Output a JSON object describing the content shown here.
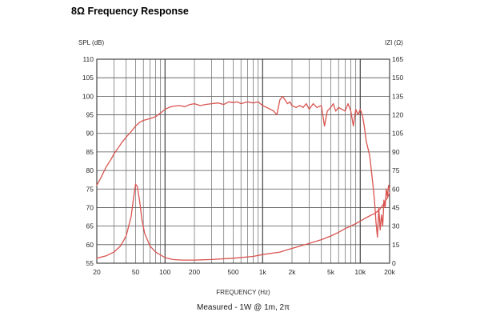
{
  "page": {
    "title": "8Ω Frequency Response"
  },
  "chart_data": {
    "type": "line",
    "title": "8Ω Frequency Response",
    "xlabel": "FREQUENCY (Hz)",
    "ylabel_left": "SPL (dB)",
    "ylabel_right": "IZI (Ω)",
    "caption": "Measured - 1W @ 1m, 2π",
    "x_scale": "log",
    "xlim": [
      20,
      20000
    ],
    "ylim_left": [
      55,
      110
    ],
    "ylim_right": [
      0,
      165
    ],
    "grid": true,
    "x_ticks": [
      {
        "value": 20,
        "label": "20"
      },
      {
        "value": 50,
        "label": "50"
      },
      {
        "value": 100,
        "label": "100"
      },
      {
        "value": 200,
        "label": "200"
      },
      {
        "value": 500,
        "label": "500"
      },
      {
        "value": 1000,
        "label": "1k"
      },
      {
        "value": 2000,
        "label": "2k"
      },
      {
        "value": 5000,
        "label": "5k"
      },
      {
        "value": 10000,
        "label": "10k"
      },
      {
        "value": 20000,
        "label": "20k"
      }
    ],
    "y_left_ticks": [
      110,
      105,
      100,
      95,
      90,
      85,
      80,
      75,
      70,
      65,
      60,
      55
    ],
    "y_right_ticks": [
      165,
      150,
      135,
      120,
      105,
      90,
      75,
      60,
      45,
      30,
      15,
      0
    ],
    "line_color": "#d9534f",
    "series": [
      {
        "axis": "left",
        "x": [
          20,
          22,
          25,
          28,
          30,
          33,
          36,
          40,
          45,
          50,
          55,
          60,
          70,
          80,
          90,
          100,
          110,
          120,
          140,
          160,
          180,
          200,
          230,
          260,
          300,
          350,
          400,
          450,
          500,
          550,
          600,
          700,
          800,
          900,
          1000,
          1100,
          1200,
          1300,
          1400,
          1500,
          1600,
          1700,
          1800,
          1900,
          2000,
          2200,
          2400,
          2600,
          2800,
          3000,
          3300,
          3600,
          4000,
          4300,
          4600,
          5000,
          5300,
          5600,
          6000,
          6500,
          7000,
          7500,
          8000,
          8500,
          9000,
          9500,
          10000,
          10500,
          11000,
          11500,
          12000,
          12500,
          13000,
          13500,
          14000,
          14500,
          15000,
          15500,
          16000,
          16500,
          17000,
          17500,
          18000,
          18500,
          19000,
          19500,
          20000
        ],
        "y": [
          76,
          78,
          81,
          83,
          84.5,
          86,
          87.5,
          89,
          90.5,
          92,
          93,
          93.5,
          94,
          94.5,
          95.5,
          96.5,
          97,
          97.3,
          97.5,
          97.2,
          97.8,
          98,
          97.5,
          97.8,
          98,
          98.2,
          97.8,
          98.5,
          98.3,
          98.5,
          98,
          98.5,
          98.2,
          98.5,
          97.5,
          97,
          96.5,
          96,
          95,
          99,
          100,
          99,
          98,
          98.5,
          97.5,
          97,
          97.5,
          97,
          98,
          96.5,
          98,
          97,
          97.5,
          92,
          96,
          97,
          98,
          96,
          97,
          96.5,
          96,
          98,
          96,
          92,
          96.5,
          95,
          96.5,
          95,
          92,
          88,
          86,
          84,
          80,
          76,
          72,
          66,
          62,
          70,
          64,
          68,
          65,
          72,
          70,
          75,
          73,
          76,
          75
        ]
      },
      {
        "axis": "right",
        "x": [
          20,
          25,
          30,
          35,
          40,
          45,
          48,
          50,
          52,
          55,
          58,
          62,
          70,
          80,
          100,
          120,
          150,
          200,
          300,
          500,
          800,
          1000,
          1500,
          2000,
          3000,
          4000,
          5000,
          6000,
          7000,
          8000,
          9000,
          10000,
          11000,
          12000,
          13000,
          14000,
          15000,
          16000,
          17000,
          18000,
          19000,
          20000
        ],
        "y": [
          4,
          6,
          9,
          14,
          22,
          38,
          55,
          64,
          62,
          50,
          35,
          24,
          14,
          9,
          4.5,
          3,
          2.5,
          2.5,
          3,
          4,
          5.5,
          7,
          9,
          12,
          16,
          19,
          22,
          25,
          28,
          30,
          32,
          34,
          36,
          37.5,
          39,
          40,
          42,
          44,
          47,
          50,
          53,
          57
        ]
      }
    ]
  }
}
